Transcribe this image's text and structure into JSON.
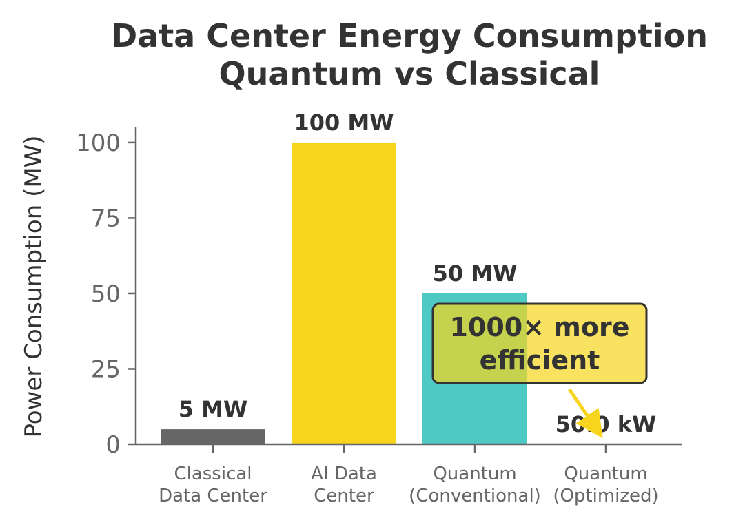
{
  "chart_data": {
    "type": "bar",
    "title_lines": [
      "Data Center Energy Consumption",
      "Quantum vs Classical"
    ],
    "xlabel": "",
    "ylabel": "Power Consumption (MW)",
    "ylim": [
      0,
      105
    ],
    "yticks": [
      0,
      25,
      50,
      75,
      100
    ],
    "categories": [
      [
        "Classical",
        "Data Center"
      ],
      [
        "AI Data",
        "Center"
      ],
      [
        "Quantum",
        "(Conventional)"
      ],
      [
        "Quantum",
        "(Optimized)"
      ]
    ],
    "values": [
      5,
      100,
      50,
      0.05
    ],
    "value_labels": [
      "5 MW",
      "100 MW",
      "50 MW",
      "50.0 kW"
    ],
    "colors": [
      "#666666",
      "#F7D51D",
      "#4FC9C4",
      "#F7D51D"
    ],
    "grid": false,
    "annotation": {
      "lines": [
        "1000× more",
        "efficient"
      ],
      "box_color": "#F7D51D",
      "arrow_color": "#F7D51D",
      "target_category_index": 3
    }
  }
}
